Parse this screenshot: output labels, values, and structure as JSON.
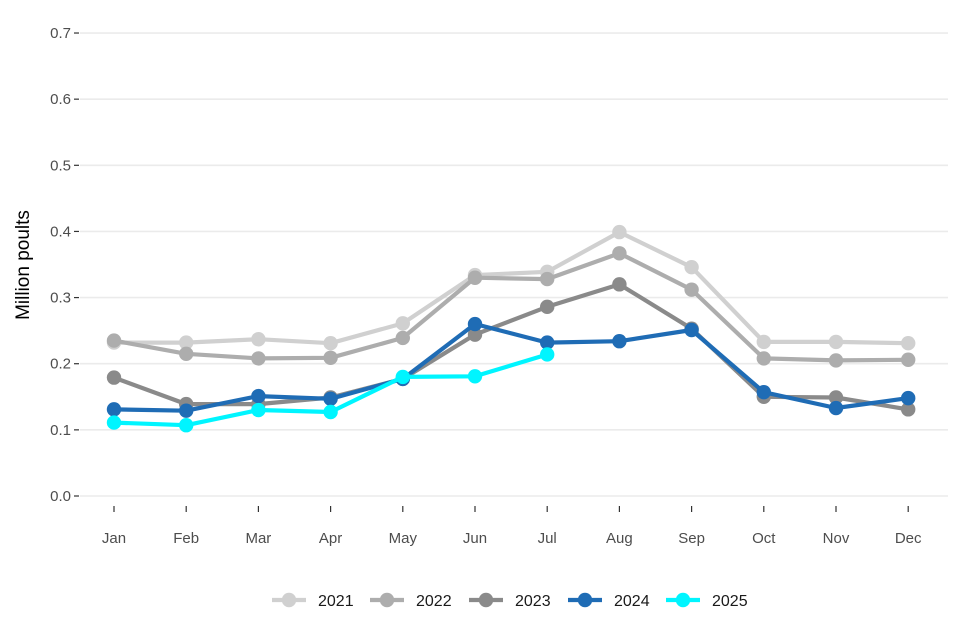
{
  "chart_data": {
    "type": "line",
    "title": "",
    "xlabel": "",
    "ylabel": "Million poults",
    "categories": [
      "Jan",
      "Feb",
      "Mar",
      "Apr",
      "May",
      "Jun",
      "Jul",
      "Aug",
      "Sep",
      "Oct",
      "Nov",
      "Dec"
    ],
    "ylim": [
      0,
      0.7
    ],
    "yticks": [
      0.0,
      0.1,
      0.2,
      0.3,
      0.4,
      0.5,
      0.6,
      0.7
    ],
    "ytick_labels": [
      "0.0",
      "0.1",
      "0.2",
      "0.3",
      "0.4",
      "0.5",
      "0.6",
      "0.7"
    ],
    "grid": "horizontal",
    "legend_position": "bottom",
    "series": [
      {
        "name": "2021",
        "color": "#d0d0d0",
        "values": [
          0.232,
          0.232,
          0.237,
          0.231,
          0.261,
          0.334,
          0.339,
          0.399,
          0.346,
          0.233,
          0.233,
          0.231
        ]
      },
      {
        "name": "2022",
        "color": "#adadad",
        "values": [
          0.235,
          0.215,
          0.208,
          0.209,
          0.239,
          0.33,
          0.328,
          0.367,
          0.312,
          0.208,
          0.205,
          0.206
        ]
      },
      {
        "name": "2023",
        "color": "#8a8a8a",
        "values": [
          0.179,
          0.139,
          0.139,
          0.149,
          0.177,
          0.244,
          0.286,
          0.32,
          0.253,
          0.15,
          0.149,
          0.131
        ]
      },
      {
        "name": "2024",
        "color": "#1f6cb5",
        "values": [
          0.131,
          0.129,
          0.151,
          0.147,
          0.177,
          0.26,
          0.232,
          0.234,
          0.251,
          0.157,
          0.133,
          0.148
        ]
      },
      {
        "name": "2025",
        "color": "#00f5ff",
        "values": [
          0.111,
          0.107,
          0.13,
          0.127,
          0.18,
          0.181,
          0.214,
          null,
          null,
          null,
          null,
          null
        ]
      }
    ]
  }
}
